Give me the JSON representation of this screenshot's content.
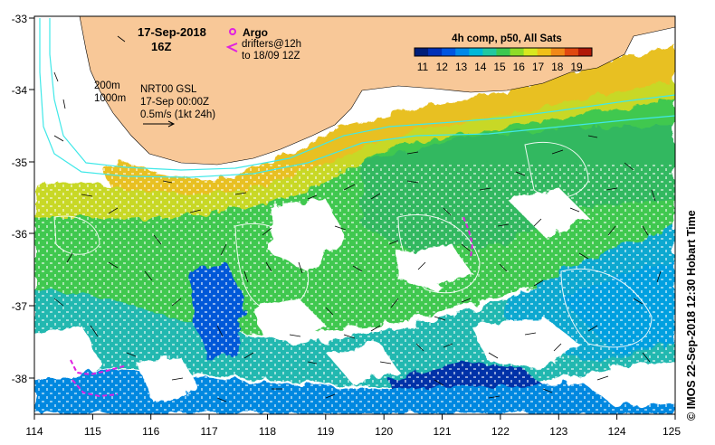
{
  "map": {
    "date": "17-Sep-2018",
    "hour": "16Z",
    "argo_label": "Argo",
    "drifters_line1": "drifters@12h",
    "drifters_line2": "to 18/09 12Z",
    "depth_200": "200m",
    "depth_1000": "1000m",
    "sea_level_product": "NRT00 GSL",
    "sea_level_time": "17-Sep 00:00Z",
    "velocity_scale": "0.5m/s (1kt 24h)",
    "colorbar_title": "4h comp, p50, All Sats",
    "colorbar_ticks": [
      "11",
      "12",
      "13",
      "14",
      "15",
      "16",
      "17",
      "18",
      "19"
    ],
    "colorbar_colors": [
      "#001e7a",
      "#0030b8",
      "#0055e0",
      "#0088e8",
      "#00b8d8",
      "#22c8a0",
      "#3cc850",
      "#8edc28",
      "#d8e820",
      "#f0c018",
      "#f08818",
      "#e04810",
      "#b01808"
    ],
    "lon_ticks": [
      "114",
      "115",
      "116",
      "117",
      "118",
      "119",
      "120",
      "121",
      "122",
      "123",
      "124",
      "125"
    ],
    "lat_ticks": [
      "-33",
      "-34",
      "-35",
      "-36",
      "-37",
      "-38"
    ],
    "credit": "© IMOS 22-Sep-2018 12:30 Hobart Time",
    "land_color": "#f8c898",
    "contour_color": "#40e8e8",
    "drifter_color": "#e020e0"
  }
}
